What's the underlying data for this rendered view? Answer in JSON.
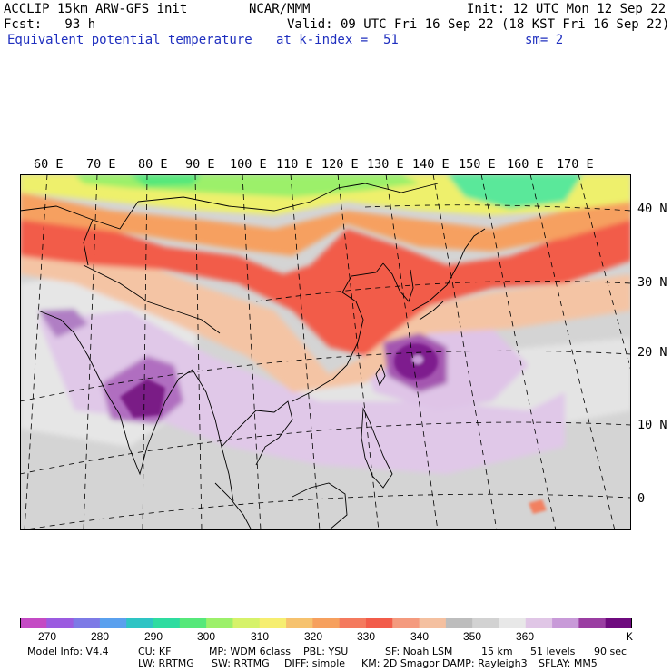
{
  "header": {
    "model_title": "ACCLIP 15km ARW-GFS init",
    "agency": "NCAR/MMM",
    "init_time": "Init: 12 UTC Mon 12 Sep 22",
    "forecast_hour": "Fcst:   93 h",
    "valid_time": "Valid: 09 UTC Fri 16 Sep 22 (18 KST Fri 16 Sep 22)",
    "field_name": "Equivalent potential temperature",
    "level": "at k-index =  51",
    "smoothing": "sm= 2"
  },
  "map": {
    "longitude_labels": [
      "60 E",
      "70 E",
      "80 E",
      "90 E",
      "100 E",
      "110 E",
      "120 E",
      "130 E",
      "140 E",
      "150 E",
      "160 E",
      "170 E"
    ],
    "latitude_labels": [
      "40 N",
      "30 N",
      "20 N",
      "10 N",
      "0"
    ],
    "features": [
      "typhoon-core-western-pacific",
      "convective-maximum-bay-of-bengal"
    ]
  },
  "colorbar": {
    "colors": [
      "#c44ac4",
      "#9b5be0",
      "#7d7ae6",
      "#5aa0ee",
      "#2ec4c4",
      "#2edca0",
      "#56e87a",
      "#9cf06a",
      "#d6f26a",
      "#f6ee70",
      "#f6c26e",
      "#f6a05e",
      "#f47a5e",
      "#f25c4a",
      "#f49a7e",
      "#f4c0a0",
      "#bdbdbd",
      "#d2d2d2",
      "#e8e8e8",
      "#e0c6e6",
      "#c89ad8",
      "#9a3ea2",
      "#6e0a7e"
    ],
    "tick_labels": [
      "270",
      "280",
      "290",
      "300",
      "310",
      "320",
      "330",
      "340",
      "350",
      "360"
    ],
    "unit": "K"
  },
  "footer": {
    "model_info": "Model Info: V4.4",
    "cu": "CU: KF",
    "mp": "MP: WDM 6class",
    "pbl": "PBL: YSU",
    "sf": "SF: Noah LSM",
    "resolution": "15 km",
    "levels": "51 levels",
    "timestep": "90 sec",
    "lw": "LW: RRTMG",
    "sw": "SW: RRTMG",
    "diff": "DIFF: simple",
    "km": "KM: 2D Smagor",
    "damp": "DAMP: Rayleigh3",
    "sflay": "SFLAY: MM5"
  }
}
